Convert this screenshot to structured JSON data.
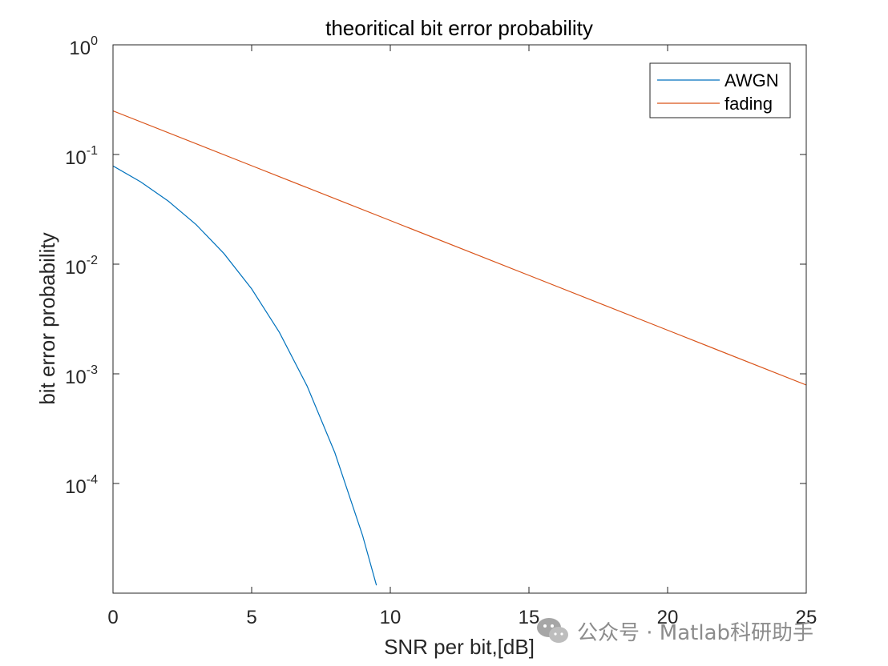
{
  "chart_data": {
    "type": "line",
    "title": "theoritical bit error probability",
    "xlabel": "SNR per bit,[dB]",
    "ylabel": "bit error probability",
    "xlim": [
      0,
      25
    ],
    "ylim": [
      1e-05,
      1
    ],
    "yscale": "log",
    "xticks": [
      0,
      5,
      10,
      15,
      20,
      25
    ],
    "xtick_labels": [
      "0",
      "5",
      "10",
      "15",
      "20",
      "25"
    ],
    "yticks": [
      1,
      0.1,
      0.01,
      0.001,
      0.0001
    ],
    "ytick_labels": [
      {
        "base": "10",
        "exp": "0"
      },
      {
        "base": "10",
        "exp": "-1"
      },
      {
        "base": "10",
        "exp": "-2"
      },
      {
        "base": "10",
        "exp": "-3"
      },
      {
        "base": "10",
        "exp": "-4"
      }
    ],
    "grid": false,
    "legend": "top-right",
    "series": [
      {
        "name": "AWGN",
        "color": "#0072BD",
        "x": [
          0,
          1,
          2,
          3,
          4,
          5,
          6,
          7,
          8,
          9,
          9.5
        ],
        "y": [
          0.0786,
          0.0563,
          0.0375,
          0.0229,
          0.0125,
          0.00595,
          0.00239,
          0.000773,
          0.000191,
          3.36e-05,
          1.18e-05
        ]
      },
      {
        "name": "fading",
        "color": "#D95319",
        "x": [
          0,
          5,
          10,
          15,
          20,
          25
        ],
        "y": [
          0.25,
          0.079,
          0.025,
          0.0079,
          0.0025,
          0.00079
        ]
      }
    ]
  },
  "watermark": {
    "text": "公众号 · Matlab科研助手",
    "icon": "wechat-icon"
  }
}
